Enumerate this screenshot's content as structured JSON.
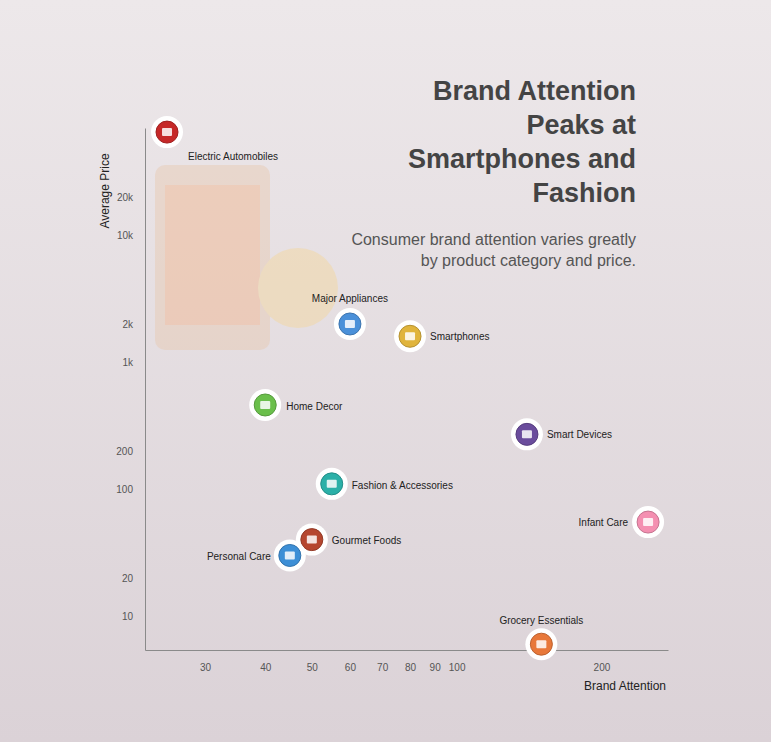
{
  "chart_data": {
    "type": "scatter",
    "title": "Brand Attention Peaks at Smartphones and Fashion",
    "subtitle": "Consumer brand attention varies greatly by product category and price.",
    "x_label": "Brand Attention",
    "y_label": "Average Price",
    "labels": [
      "Electric Automobiles",
      "Major Appliances",
      "Smartphones",
      "Home Decor",
      "Smart Devices",
      "Fashion & Accessories",
      "Infant Care",
      "Gourmet Foods",
      "Personal Care",
      "Grocery Essentials"
    ],
    "x": [
      25,
      60,
      80,
      40,
      140,
      55,
      250,
      50,
      45,
      150
    ],
    "values": [
      65000,
      2000,
      1600,
      460,
      270,
      110,
      55,
      40,
      30,
      6
    ],
    "colors": [
      "#c62828",
      "#4a90d9",
      "#e0b43c",
      "#6abf4b",
      "#6a4c9c",
      "#2bb0a8",
      "#f48fb1",
      "#b5462f",
      "#3d8fd6",
      "#e8783a"
    ],
    "marker": "circle",
    "log": true,
    "grid": false,
    "xlim": [
      22.5,
      275
    ],
    "ylim": [
      5.4,
      70000
    ],
    "xticks": [
      30,
      40,
      50,
      60,
      70,
      80,
      90,
      100,
      200
    ],
    "yticks": [
      10,
      20,
      100,
      200,
      {
        "value": 1000,
        "label": "1k"
      },
      {
        "value": 2000,
        "label": "2k"
      },
      {
        "value": 10000,
        "label": "10k"
      },
      {
        "value": 20000,
        "label": "20k"
      }
    ]
  }
}
